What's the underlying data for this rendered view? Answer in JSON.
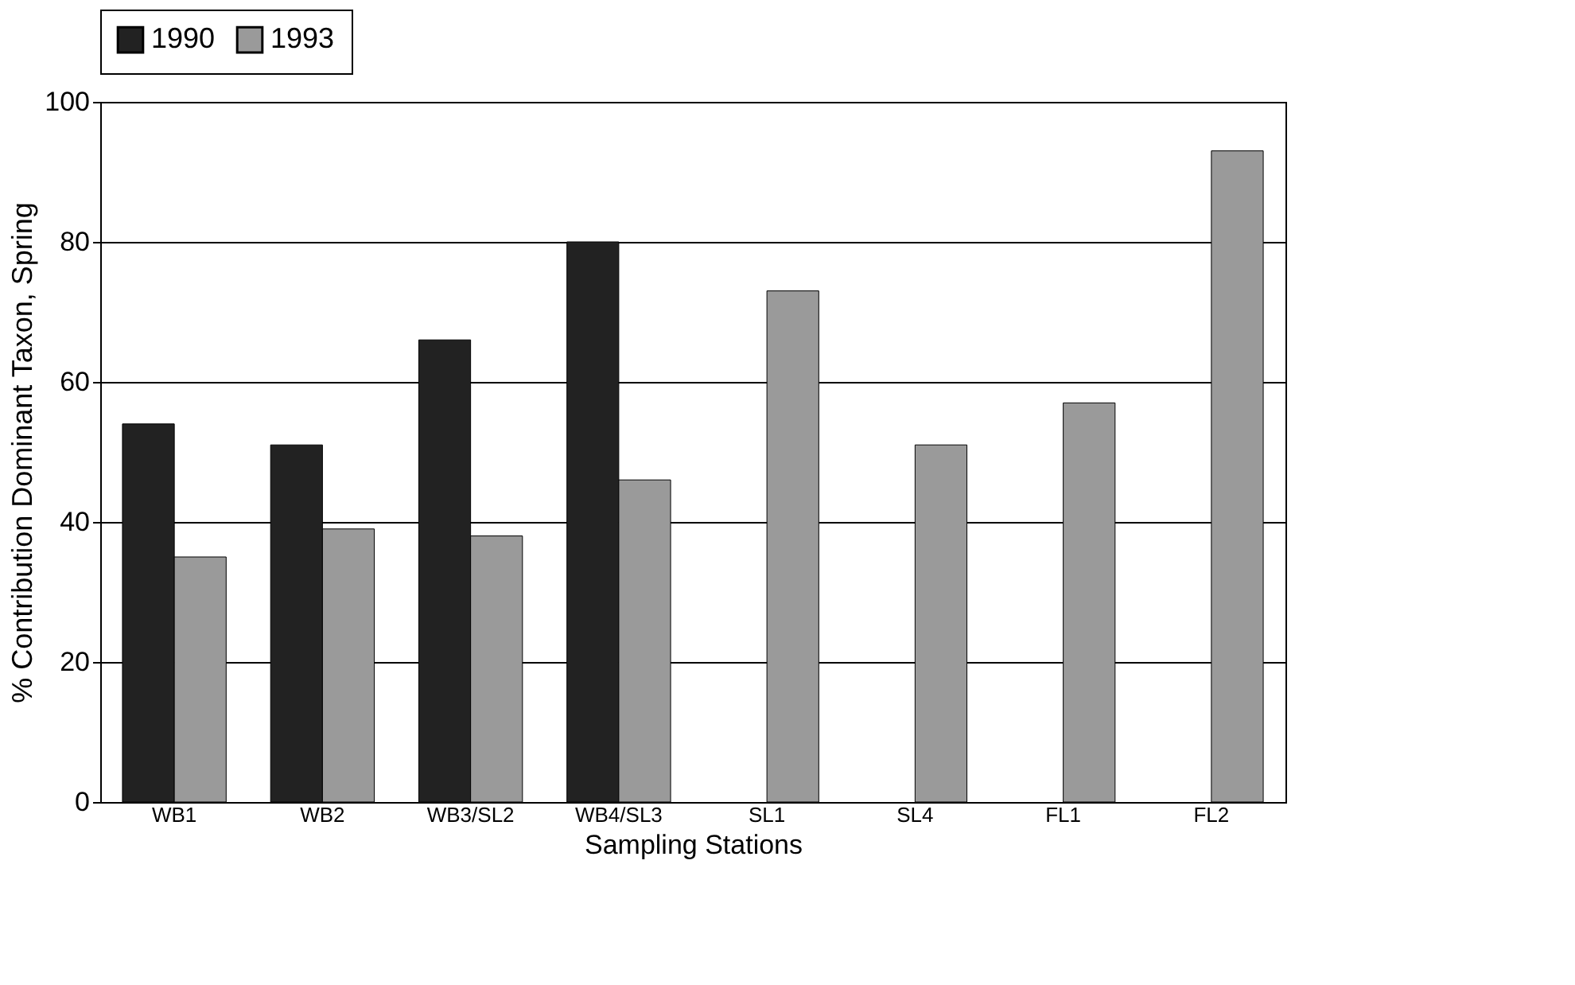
{
  "chart_data": {
    "type": "bar",
    "xlabel": "Sampling Stations",
    "ylabel": "% Contribution Dominant Taxon, Spring",
    "categories": [
      "WB1",
      "WB2",
      "WB3/SL2",
      "WB4/SL3",
      "SL1",
      "SL4",
      "FL1",
      "FL2"
    ],
    "series": [
      {
        "name": "1990",
        "color": "#222222",
        "values": [
          54,
          51,
          66,
          80,
          null,
          null,
          null,
          null
        ]
      },
      {
        "name": "1993",
        "color": "#9a9a9a",
        "values": [
          35,
          39,
          38,
          46,
          73,
          51,
          57,
          93
        ]
      }
    ],
    "ylim": [
      0,
      100
    ],
    "yticks": [
      0,
      20,
      40,
      60,
      80,
      100
    ],
    "grid": "y",
    "legend": "top"
  }
}
